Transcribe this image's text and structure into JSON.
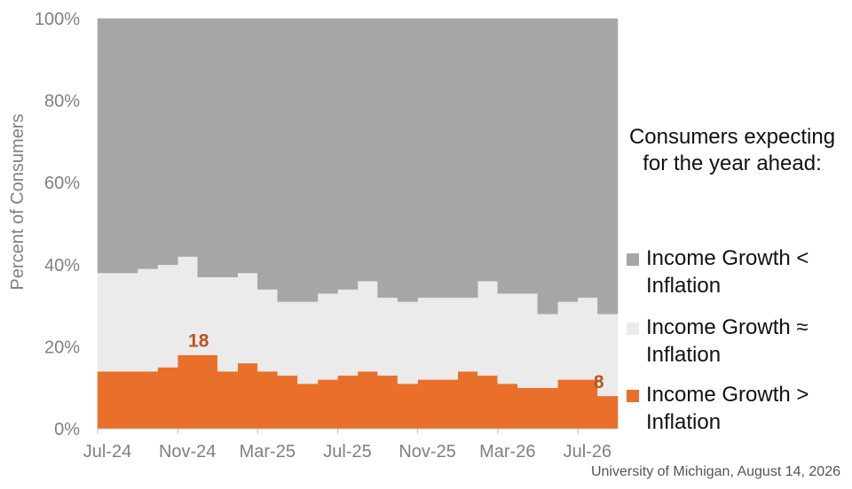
{
  "chart_data": {
    "type": "area",
    "stacked": true,
    "x": [
      "Jul-24",
      "Aug-24",
      "Sep-24",
      "Oct-24",
      "Nov-24",
      "Dec-24",
      "Jan-25",
      "Feb-25",
      "Mar-25",
      "Apr-25",
      "May-25",
      "Jun-25",
      "Jul-25",
      "Aug-25",
      "Sep-25",
      "Oct-25",
      "Nov-25",
      "Dec-25",
      "Jan-26",
      "Feb-26",
      "Mar-26",
      "Apr-26",
      "May-26",
      "Jun-26",
      "Jul-26",
      "Aug-26"
    ],
    "x_tick_labels": [
      "Jul-24",
      "Nov-24",
      "Mar-25",
      "Jul-25",
      "Nov-25",
      "Mar-26",
      "Jul-26"
    ],
    "y_tick_labels": [
      "0%",
      "20%",
      "40%",
      "60%",
      "80%",
      "100%"
    ],
    "ylim": [
      0,
      100
    ],
    "ylabel": "Percent of Consumers",
    "series": [
      {
        "name": "Income Growth > Inflation",
        "color": "#e8702a",
        "values": [
          14,
          14,
          14,
          15,
          18,
          18,
          14,
          16,
          14,
          13,
          11,
          12,
          13,
          14,
          13,
          11,
          12,
          12,
          14,
          13,
          11,
          10,
          10,
          12,
          12,
          8
        ]
      },
      {
        "name": "Income Growth ≈ Inflation",
        "color": "#ebebeb",
        "values": [
          24,
          24,
          25,
          25,
          24,
          19,
          23,
          22,
          20,
          18,
          20,
          21,
          21,
          22,
          19,
          20,
          20,
          20,
          18,
          23,
          22,
          23,
          18,
          19,
          20,
          20
        ]
      },
      {
        "name": "Income Growth < Inflation",
        "color": "#a6a6a6",
        "values": [
          62,
          62,
          61,
          60,
          58,
          63,
          63,
          62,
          66,
          69,
          69,
          67,
          66,
          64,
          68,
          69,
          68,
          68,
          68,
          64,
          67,
          67,
          72,
          69,
          68,
          72
        ]
      }
    ],
    "data_labels": [
      {
        "series": "Income Growth > Inflation",
        "x": "Nov-24",
        "text": "18"
      },
      {
        "series": "Income Growth > Inflation",
        "x": "Aug-26",
        "text": "8"
      }
    ]
  },
  "legend": {
    "title": "Consumers expecting for the year ahead:",
    "items": [
      {
        "label": "Income Growth < Inflation",
        "color": "#a6a6a6"
      },
      {
        "label": "Income Growth ≈ Inflation",
        "color": "#ebebeb"
      },
      {
        "label": "Income Growth > Inflation",
        "color": "#e8702a"
      }
    ]
  },
  "source": "University of Michigan, August 14, 2026"
}
